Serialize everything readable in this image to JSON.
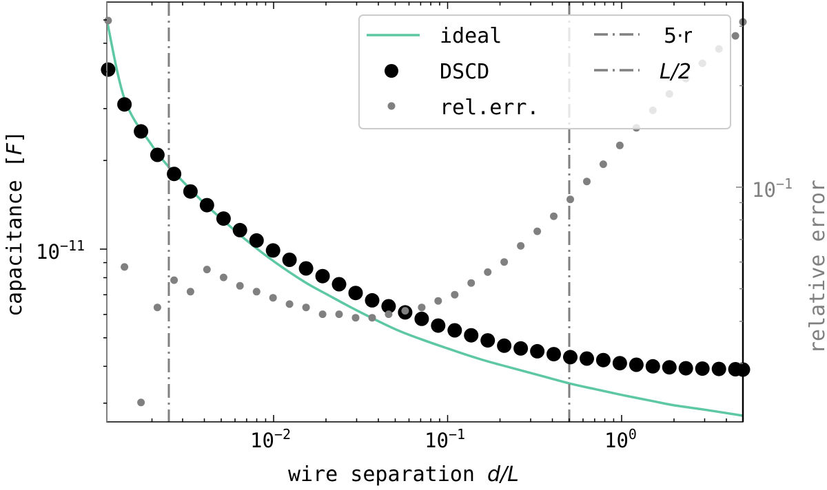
{
  "figure": {
    "xlabel_text": "wire separation ",
    "xlabel_math": "d/L",
    "ylabel_text": "capacitance [",
    "ylabel_math": "F",
    "ylabel_close": "]",
    "ylabel_right": "relative error",
    "x_tick_labels": [
      {
        "base": "10",
        "exp": "−2",
        "value": 0.01
      },
      {
        "base": "10",
        "exp": "−1",
        "value": 0.1
      },
      {
        "base": "10",
        "exp": "0",
        "value": 1
      }
    ],
    "y_tick_labels": [
      {
        "base": "10",
        "exp": "−11",
        "value": 1e-11
      }
    ],
    "y_right_tick_labels": [
      {
        "base": "10",
        "exp": "−1",
        "value": 0.1
      }
    ]
  },
  "legend": {
    "items": [
      {
        "label": "ideal",
        "kind": "line",
        "color": "#5ec8a3"
      },
      {
        "label": "DSCD",
        "kind": "marker-large",
        "color": "#000000"
      },
      {
        "label": "rel.err.",
        "kind": "marker-small",
        "color": "#808080"
      },
      {
        "label": "5·r",
        "kind": "dashdot",
        "color": "#808080"
      },
      {
        "label": "L/2",
        "kind": "dashdot",
        "color": "#808080"
      }
    ]
  },
  "colors": {
    "ideal": "#5ec8a3",
    "dscd": "#000000",
    "relerr": "#808080",
    "vlines": "#808080",
    "axis_right": "#808080"
  },
  "chart_data": {
    "type": "scatter",
    "title": "",
    "xlabel": "wire separation d/L",
    "ylabel": "capacitance [F]",
    "ylabel_right": "relative error",
    "xscale": "log",
    "yscale": "log",
    "yscale_right": "log",
    "xlim": [
      0.0011,
      5.0
    ],
    "ylim": [
      2.6e-12,
      6.5e-11
    ],
    "ylim_right": [
      0.0201,
      0.33
    ],
    "grid": false,
    "legend_position": "upper right",
    "x": [
      0.00112,
      0.00139,
      0.00173,
      0.00215,
      0.00268,
      0.00333,
      0.00414,
      0.00516,
      0.00641,
      0.00798,
      0.00993,
      0.01235,
      0.01537,
      0.01912,
      0.02379,
      0.0296,
      0.03683,
      0.04583,
      0.05702,
      0.07095,
      0.08827,
      0.1098,
      0.1366,
      0.17,
      0.2115,
      0.2632,
      0.3275,
      0.4074,
      0.507,
      0.6308,
      0.7848,
      0.9765,
      1.215,
      1.512,
      1.881,
      2.34,
      2.912,
      3.623,
      4.508,
      5.0
    ],
    "series": [
      {
        "name": "DSCD",
        "type": "scatter",
        "axis": "left",
        "marker": "large-circle",
        "color": "#000000",
        "values": [
          4.07e-11,
          3.1e-11,
          2.51e-11,
          2.09e-11,
          1.8e-11,
          1.57e-11,
          1.41e-11,
          1.27e-11,
          1.16e-11,
          1.07e-11,
          9.9e-12,
          9.2e-12,
          8.6e-12,
          8.1e-12,
          7.6e-12,
          7.1e-12,
          6.7e-12,
          6.4e-12,
          6.1e-12,
          5.8e-12,
          5.5e-12,
          5.3e-12,
          5.1e-12,
          4.9e-12,
          4.7e-12,
          4.6e-12,
          4.5e-12,
          4.4e-12,
          4.3e-12,
          4.25e-12,
          4.2e-12,
          4.1e-12,
          4.05e-12,
          4e-12,
          3.97e-12,
          3.94e-12,
          3.93e-12,
          3.92e-12,
          3.91e-12,
          3.9e-12
        ]
      },
      {
        "name": "rel.err.",
        "type": "scatter",
        "axis": "right",
        "marker": "small-circle",
        "color": "#808080",
        "values": [
          0.312,
          0.058,
          0.023,
          0.044,
          0.053,
          0.049,
          0.057,
          0.054,
          0.051,
          0.049,
          0.047,
          0.045,
          0.044,
          0.042,
          0.042,
          0.041,
          0.041,
          0.042,
          0.043,
          0.044,
          0.046,
          0.048,
          0.052,
          0.056,
          0.06,
          0.067,
          0.074,
          0.082,
          0.092,
          0.104,
          0.117,
          0.133,
          0.15,
          0.169,
          0.189,
          0.21,
          0.233,
          0.257,
          0.281,
          0.309
        ]
      },
      {
        "name": "ideal",
        "type": "line",
        "axis": "left",
        "color": "#5ec8a3",
        "x": [
          0.0011,
          0.0014,
          0.002,
          0.0025,
          0.003,
          0.004,
          0.005,
          0.007,
          0.01,
          0.015,
          0.02,
          0.03,
          0.05,
          0.07,
          0.1,
          0.15,
          0.2,
          0.3,
          0.5,
          0.7,
          1.0,
          1.5,
          2.0,
          3.0,
          5.0
        ],
        "values": [
          6e-11,
          3.2e-11,
          2.25e-11,
          1.9e-11,
          1.7e-11,
          1.43e-11,
          1.27e-11,
          1.07e-11,
          9.1e-12,
          7.75e-12,
          7.05e-12,
          6.2e-12,
          5.35e-12,
          4.95e-12,
          4.6e-12,
          4.25e-12,
          4.05e-12,
          3.8e-12,
          3.5e-12,
          3.35e-12,
          3.2e-12,
          3.05e-12,
          2.95e-12,
          2.85e-12,
          2.72e-12
        ]
      }
    ],
    "vlines": [
      {
        "name": "5·r",
        "x": 0.0025,
        "style": "dashdot",
        "color": "#808080"
      },
      {
        "name": "L/2",
        "x": 0.5,
        "style": "dashdot",
        "color": "#808080"
      }
    ]
  }
}
